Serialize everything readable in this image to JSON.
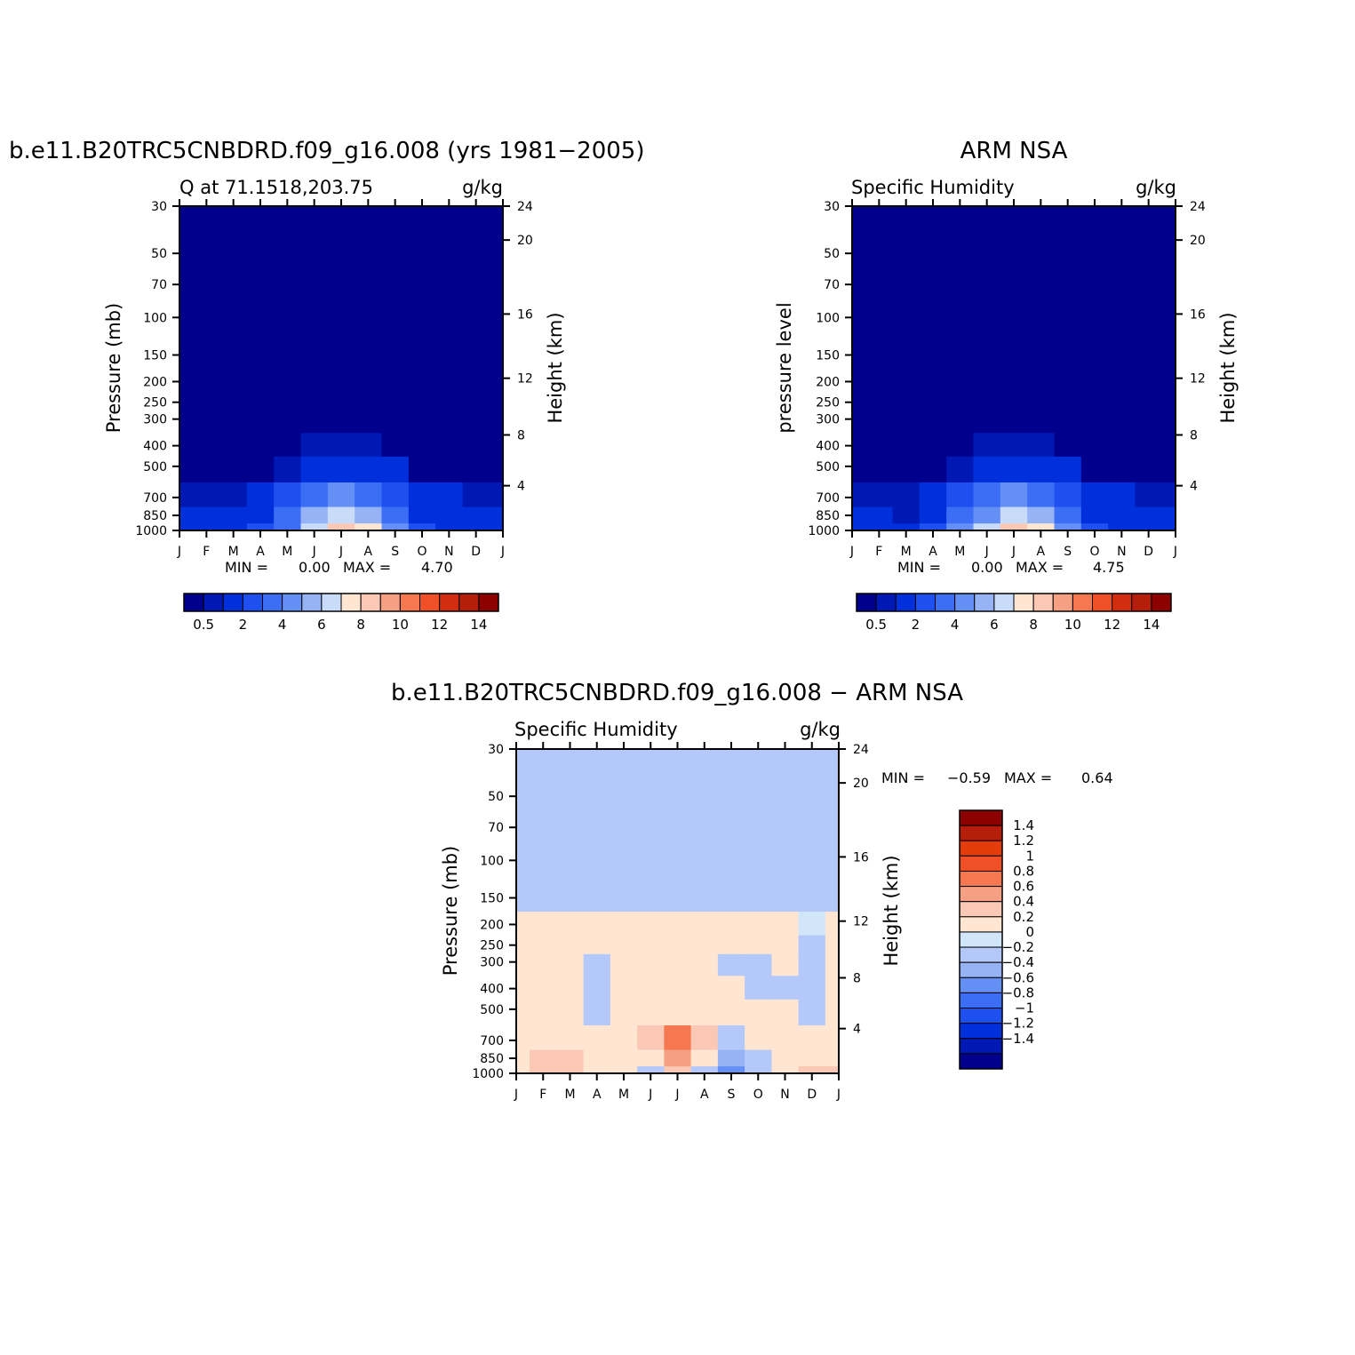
{
  "chart_data": [
    {
      "type": "heatmap",
      "id": "model",
      "title": "b.e11.B20TRC5CNBDRD.f09_g16.008 (yrs 1981-2005)",
      "left_string": "Q at 71.1518,203.75",
      "right_string": "g/kg",
      "ylabel": "Pressure (mb)",
      "ylabel_right": "Height (km)",
      "x_ticks": [
        "J",
        "F",
        "M",
        "A",
        "M",
        "J",
        "J",
        "A",
        "S",
        "O",
        "N",
        "D",
        "J"
      ],
      "y_ticks": [
        30,
        50,
        70,
        100,
        150,
        200,
        250,
        300,
        400,
        500,
        700,
        850,
        1000
      ],
      "y_right_ticks": [
        4,
        8,
        12,
        16,
        20,
        24
      ],
      "ylim": [
        30,
        1000
      ],
      "stats": {
        "min_label": "MIN =",
        "min": "0.00",
        "max_label": "MAX =",
        "max": "4.70"
      },
      "colorbar": {
        "colors": [
          "#00008c",
          "#0018b4",
          "#0030dc",
          "#1e50f0",
          "#3c6ef5",
          "#6490f5",
          "#96b4f5",
          "#c8dcfa",
          "#ffe6d2",
          "#fac8b4",
          "#f5a082",
          "#f57850",
          "#f05028",
          "#d22d0f",
          "#b41e0a",
          "#8c0000"
        ],
        "labels": [
          "0.5",
          "2",
          "4",
          "6",
          "8",
          "10",
          "12",
          "14"
        ]
      },
      "data": {
        "months": [
          "J",
          "F",
          "M",
          "A",
          "M",
          "J",
          "J",
          "A",
          "S",
          "O",
          "N",
          "D",
          "J"
        ],
        "pressure_levels": [
          1000,
          850,
          700,
          500,
          400,
          300,
          250,
          200,
          150,
          100,
          70,
          50,
          30
        ],
        "values": [
          [
            0.7,
            0.6,
            0.7,
            1.1,
            1.9,
            3.2,
            4.7,
            3.8,
            2.0,
            1.0,
            0.8,
            0.7,
            0.7
          ],
          [
            0.6,
            0.5,
            0.5,
            0.9,
            1.6,
            2.5,
            3.2,
            2.8,
            1.6,
            0.8,
            0.6,
            0.6,
            0.6
          ],
          [
            0.4,
            0.4,
            0.4,
            0.6,
            1.1,
            1.8,
            2.2,
            1.9,
            1.1,
            0.6,
            0.5,
            0.4,
            0.4
          ],
          [
            0.2,
            0.2,
            0.2,
            0.2,
            0.4,
            0.7,
            0.9,
            0.8,
            0.5,
            0.2,
            0.2,
            0.2,
            0.2
          ],
          [
            0.1,
            0.1,
            0.1,
            0.1,
            0.2,
            0.3,
            0.4,
            0.3,
            0.2,
            0.1,
            0.1,
            0.1,
            0.1
          ],
          [
            0.05,
            0.05,
            0.05,
            0.05,
            0.08,
            0.1,
            0.15,
            0.12,
            0.08,
            0.05,
            0.05,
            0.05,
            0.05
          ],
          [
            0.03,
            0.03,
            0.03,
            0.03,
            0.04,
            0.05,
            0.06,
            0.05,
            0.04,
            0.03,
            0.03,
            0.03,
            0.03
          ],
          [
            0.01,
            0.01,
            0.01,
            0.01,
            0.01,
            0.02,
            0.02,
            0.02,
            0.01,
            0.01,
            0.01,
            0.01,
            0.01
          ],
          [
            0.0,
            0.0,
            0.0,
            0.0,
            0.0,
            0.0,
            0.0,
            0.0,
            0.0,
            0.0,
            0.0,
            0.0,
            0.0
          ],
          [
            0.0,
            0.0,
            0.0,
            0.0,
            0.0,
            0.0,
            0.0,
            0.0,
            0.0,
            0.0,
            0.0,
            0.0,
            0.0
          ],
          [
            0.0,
            0.0,
            0.0,
            0.0,
            0.0,
            0.0,
            0.0,
            0.0,
            0.0,
            0.0,
            0.0,
            0.0,
            0.0
          ],
          [
            0.0,
            0.0,
            0.0,
            0.0,
            0.0,
            0.0,
            0.0,
            0.0,
            0.0,
            0.0,
            0.0,
            0.0,
            0.0
          ],
          [
            0.0,
            0.0,
            0.0,
            0.0,
            0.0,
            0.0,
            0.0,
            0.0,
            0.0,
            0.0,
            0.0,
            0.0,
            0.0
          ]
        ]
      }
    },
    {
      "type": "heatmap",
      "id": "obs",
      "title": "ARM NSA",
      "left_string": "Specific Humidity",
      "right_string": "g/kg",
      "ylabel": "pressure level",
      "ylabel_right": "Height (km)",
      "x_ticks": [
        "J",
        "F",
        "M",
        "A",
        "M",
        "J",
        "J",
        "A",
        "S",
        "O",
        "N",
        "D",
        "J"
      ],
      "y_ticks": [
        30,
        50,
        70,
        100,
        150,
        200,
        250,
        300,
        400,
        500,
        700,
        850,
        1000
      ],
      "y_right_ticks": [
        4,
        8,
        12,
        16,
        20,
        24
      ],
      "ylim": [
        30,
        1000
      ],
      "stats": {
        "min_label": "MIN =",
        "min": "0.00",
        "max_label": "MAX =",
        "max": "4.75"
      },
      "colorbar": {
        "colors": [
          "#00008c",
          "#0018b4",
          "#0030dc",
          "#1e50f0",
          "#3c6ef5",
          "#6490f5",
          "#96b4f5",
          "#c8dcfa",
          "#ffe6d2",
          "#fac8b4",
          "#f5a082",
          "#f57850",
          "#f05028",
          "#d22d0f",
          "#b41e0a",
          "#8c0000"
        ],
        "labels": [
          "0.5",
          "2",
          "4",
          "6",
          "8",
          "10",
          "12",
          "14"
        ]
      },
      "data": {
        "months": [
          "J",
          "F",
          "M",
          "A",
          "M",
          "J",
          "J",
          "A",
          "S",
          "O",
          "N",
          "D",
          "J"
        ],
        "pressure_levels": [
          1000,
          850,
          700,
          500,
          400,
          300,
          250,
          200,
          150,
          100,
          70,
          50,
          30
        ],
        "values": [
          [
            0.7,
            0.6,
            0.6,
            1.1,
            2.0,
            3.2,
            4.75,
            3.9,
            2.1,
            1.0,
            0.8,
            0.7,
            0.7
          ],
          [
            0.6,
            0.5,
            0.4,
            0.9,
            1.6,
            2.4,
            3.2,
            2.9,
            1.7,
            0.8,
            0.6,
            0.6,
            0.6
          ],
          [
            0.4,
            0.4,
            0.3,
            0.6,
            1.0,
            1.7,
            2.1,
            1.9,
            1.1,
            0.6,
            0.5,
            0.4,
            0.4
          ],
          [
            0.2,
            0.2,
            0.2,
            0.2,
            0.4,
            0.7,
            0.8,
            0.8,
            0.5,
            0.2,
            0.2,
            0.2,
            0.2
          ],
          [
            0.1,
            0.1,
            0.1,
            0.1,
            0.2,
            0.3,
            0.35,
            0.3,
            0.2,
            0.1,
            0.1,
            0.1,
            0.1
          ],
          [
            0.05,
            0.05,
            0.05,
            0.05,
            0.08,
            0.1,
            0.12,
            0.1,
            0.08,
            0.05,
            0.05,
            0.05,
            0.05
          ],
          [
            0.03,
            0.03,
            0.03,
            0.03,
            0.04,
            0.05,
            0.05,
            0.05,
            0.04,
            0.03,
            0.03,
            0.03,
            0.03
          ],
          [
            0.01,
            0.01,
            0.01,
            0.01,
            0.01,
            0.02,
            0.02,
            0.02,
            0.01,
            0.01,
            0.01,
            0.01,
            0.01
          ],
          [
            0.0,
            0.0,
            0.0,
            0.0,
            0.0,
            0.0,
            0.0,
            0.0,
            0.0,
            0.0,
            0.0,
            0.0,
            0.0
          ],
          [
            0.0,
            0.0,
            0.0,
            0.0,
            0.0,
            0.0,
            0.0,
            0.0,
            0.0,
            0.0,
            0.0,
            0.0,
            0.0
          ],
          [
            0.0,
            0.0,
            0.0,
            0.0,
            0.0,
            0.0,
            0.0,
            0.0,
            0.0,
            0.0,
            0.0,
            0.0,
            0.0
          ],
          [
            0.0,
            0.0,
            0.0,
            0.0,
            0.0,
            0.0,
            0.0,
            0.0,
            0.0,
            0.0,
            0.0,
            0.0,
            0.0
          ],
          [
            0.0,
            0.0,
            0.0,
            0.0,
            0.0,
            0.0,
            0.0,
            0.0,
            0.0,
            0.0,
            0.0,
            0.0,
            0.0
          ]
        ]
      }
    },
    {
      "type": "heatmap",
      "id": "diff",
      "title": "b.e11.B20TRC5CNBDRD.f09_g16.008 - ARM NSA",
      "left_string": "Specific Humidity",
      "right_string": "g/kg",
      "ylabel": "Pressure (mb)",
      "ylabel_right": "Height (km)",
      "x_ticks": [
        "J",
        "F",
        "M",
        "A",
        "M",
        "J",
        "J",
        "A",
        "S",
        "O",
        "N",
        "D",
        "J"
      ],
      "y_ticks": [
        30,
        50,
        70,
        100,
        150,
        200,
        250,
        300,
        400,
        500,
        700,
        850,
        1000
      ],
      "y_right_ticks": [
        4,
        8,
        12,
        16,
        20,
        24
      ],
      "ylim": [
        30,
        1000
      ],
      "stats": {
        "min_label": "MIN =",
        "min": "-0.59",
        "max_label": "MAX =",
        "max": "0.64"
      },
      "colorbar": {
        "colors": [
          "#00008c",
          "#0018b4",
          "#0030dc",
          "#1e50f0",
          "#3c6ef5",
          "#6490f5",
          "#96b4f5",
          "#b4c8fa",
          "#d2e6fa",
          "#ffe6d2",
          "#fac8b4",
          "#f5a082",
          "#f57850",
          "#f05028",
          "#e13c0a",
          "#b41e0a",
          "#8c0000"
        ],
        "labels": [
          "1.4",
          "1.2",
          "1",
          "0.8",
          "0.6",
          "0.4",
          "0.2",
          "0",
          "-0.2",
          "-0.4",
          "-0.6",
          "-0.8",
          "-1",
          "-1.2",
          "-1.4"
        ]
      },
      "data": {
        "months": [
          "J",
          "F",
          "M",
          "A",
          "M",
          "J",
          "J",
          "A",
          "S",
          "O",
          "N",
          "D",
          "J"
        ],
        "pressure_levels": [
          1000,
          850,
          700,
          500,
          400,
          300,
          250,
          200,
          150,
          100,
          70,
          50,
          30
        ],
        "values": [
          [
            0.1,
            0.3,
            0.3,
            0.1,
            0.1,
            -0.1,
            0.2,
            -0.2,
            -0.59,
            -0.2,
            0.1,
            0.2,
            0.2
          ],
          [
            0.15,
            0.25,
            0.2,
            0.05,
            0.1,
            0.1,
            0.5,
            0.1,
            -0.25,
            -0.05,
            0.1,
            0.15,
            0.15
          ],
          [
            0.1,
            0.1,
            0.1,
            0.1,
            0.05,
            0.3,
            0.64,
            0.2,
            -0.1,
            0.05,
            0.1,
            0.1,
            0.1
          ],
          [
            0.05,
            0.05,
            0.05,
            -0.05,
            0.05,
            0.1,
            0.15,
            0.1,
            0.05,
            0.05,
            0.05,
            -0.05,
            0.05
          ],
          [
            0.05,
            0.05,
            0.05,
            -0.05,
            0.05,
            0.05,
            0.05,
            0.05,
            0.05,
            -0.05,
            -0.05,
            -0.05,
            0.05
          ],
          [
            0.05,
            0.05,
            0.05,
            -0.05,
            0.05,
            0.05,
            0.05,
            0.05,
            -0.05,
            -0.05,
            0.05,
            -0.05,
            0.05
          ],
          [
            0.05,
            0.05,
            0.05,
            0.05,
            0.05,
            0.05,
            0.05,
            0.05,
            0.05,
            0.05,
            0.05,
            -0.05,
            0.05
          ],
          [
            0.02,
            0.02,
            0.02,
            0.02,
            0.01,
            0.02,
            0.02,
            0.02,
            0.01,
            0.01,
            0.01,
            0.0,
            0.02
          ],
          [
            -0.02,
            -0.02,
            -0.02,
            -0.02,
            -0.02,
            -0.02,
            -0.02,
            -0.02,
            -0.02,
            -0.02,
            -0.02,
            -0.02,
            -0.02
          ],
          [
            -0.01,
            -0.01,
            -0.01,
            -0.01,
            -0.01,
            -0.01,
            -0.01,
            -0.01,
            -0.01,
            -0.01,
            -0.01,
            -0.01,
            -0.01
          ],
          [
            -0.01,
            -0.01,
            -0.01,
            -0.01,
            -0.01,
            -0.01,
            -0.01,
            -0.01,
            -0.01,
            -0.01,
            -0.01,
            -0.01,
            -0.01
          ],
          [
            -0.01,
            -0.01,
            -0.01,
            -0.01,
            -0.01,
            -0.01,
            -0.01,
            -0.01,
            -0.01,
            -0.01,
            -0.01,
            -0.01,
            -0.01
          ],
          [
            -0.01,
            -0.01,
            -0.01,
            -0.01,
            -0.01,
            -0.01,
            -0.01,
            -0.01,
            -0.01,
            -0.01,
            -0.01,
            -0.01,
            -0.01
          ]
        ]
      }
    }
  ]
}
